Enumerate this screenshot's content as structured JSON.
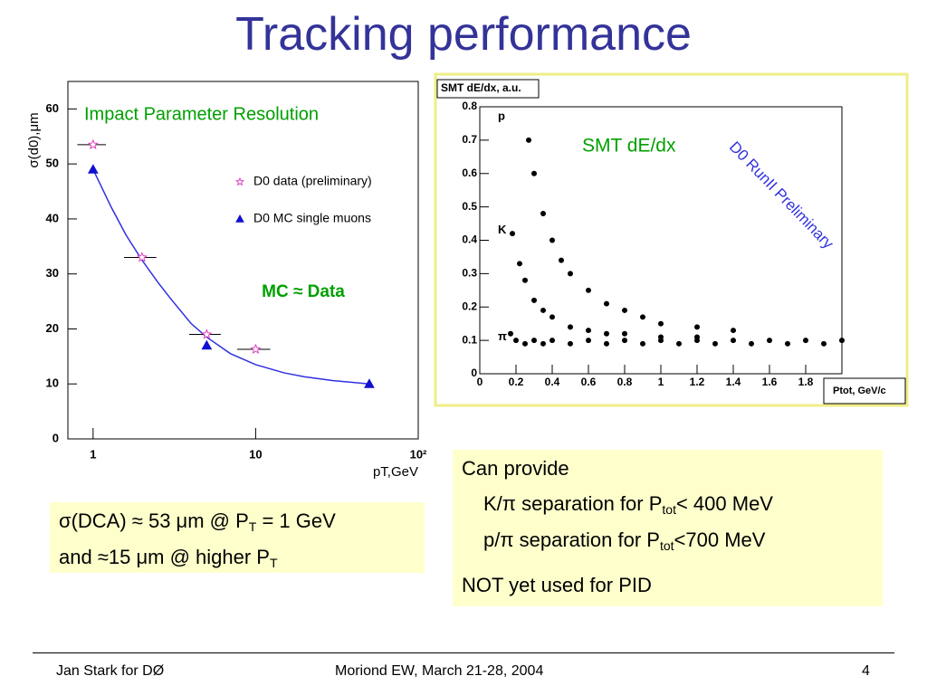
{
  "title": "Tracking performance",
  "chart_data": [
    {
      "type": "scatter",
      "title": "Impact Parameter Resolution",
      "annotation": "MC ≈ Data",
      "ylabel": "σ(d0),μm",
      "xlabel": "pT,GeV",
      "log_x": true,
      "xlim": [
        0.7,
        100
      ],
      "xticks": [
        1,
        10,
        {
          "value": 100,
          "label": "10²"
        }
      ],
      "ylim": [
        0,
        65
      ],
      "yticks": [
        0,
        10,
        20,
        30,
        40,
        50,
        60
      ],
      "series": [
        {
          "name": "D0 data (preliminary)",
          "color": "#e040c0",
          "marker": "star",
          "x": [
            1,
            2,
            5,
            10
          ],
          "values": [
            53.5,
            33,
            19,
            16.3
          ],
          "xerr": [
            0.2,
            0.45,
            1.1,
            2.3
          ]
        },
        {
          "name": "D0 MC single muons",
          "color": "#1010d0",
          "marker": "triangle",
          "x": [
            1,
            5,
            50
          ],
          "values": [
            49,
            17,
            10
          ]
        }
      ],
      "fit": {
        "color": "#3030e0",
        "x": [
          1,
          1.3,
          1.6,
          2,
          2.5,
          3,
          4,
          5,
          7,
          10,
          15,
          20,
          30,
          50
        ],
        "values": [
          49,
          42,
          37,
          32.5,
          28.5,
          25.5,
          21,
          18.5,
          15.5,
          13.5,
          12,
          11.3,
          10.6,
          10
        ]
      }
    },
    {
      "type": "scatter",
      "ylabel": "SMT dE/dx, a.u.",
      "xlabel": "Ptot, GeV/c",
      "annotation": "SMT dE/dx",
      "watermark": "D0 RunII Preliminary",
      "band_labels": [
        "p",
        "K",
        "π"
      ],
      "band_positions": [
        0.77,
        0.43,
        0.11
      ],
      "xlim": [
        0,
        2.0
      ],
      "xticks": [
        0,
        0.2,
        0.4,
        0.6,
        0.8,
        1,
        1.2,
        1.4,
        1.6,
        1.8
      ],
      "ylim": [
        0,
        0.8
      ],
      "yticks": [
        0,
        0.1,
        0.2,
        0.3,
        0.4,
        0.5,
        0.6,
        0.7,
        0.8
      ],
      "color": "#000000",
      "x": [
        0.17,
        0.2,
        0.25,
        0.3,
        0.35,
        0.4,
        0.5,
        0.6,
        0.7,
        0.8,
        0.9,
        1.0,
        1.1,
        1.2,
        1.3,
        1.4,
        1.5,
        1.6,
        1.7,
        1.8,
        1.9,
        2.0,
        0.18,
        0.22,
        0.25,
        0.3,
        0.35,
        0.4,
        0.5,
        0.6,
        0.7,
        0.8,
        1.0,
        1.2,
        0.27,
        0.3,
        0.35,
        0.4,
        0.45,
        0.5,
        0.6,
        0.7,
        0.8,
        0.9,
        1.0,
        1.2,
        1.4
      ],
      "values": [
        0.12,
        0.1,
        0.09,
        0.1,
        0.09,
        0.1,
        0.09,
        0.1,
        0.09,
        0.1,
        0.09,
        0.1,
        0.09,
        0.1,
        0.09,
        0.1,
        0.09,
        0.1,
        0.09,
        0.1,
        0.09,
        0.1,
        0.42,
        0.33,
        0.28,
        0.22,
        0.19,
        0.17,
        0.14,
        0.13,
        0.12,
        0.12,
        0.11,
        0.11,
        0.7,
        0.6,
        0.48,
        0.4,
        0.34,
        0.3,
        0.25,
        0.21,
        0.19,
        0.17,
        0.15,
        0.14,
        0.13
      ]
    }
  ],
  "dca_box": {
    "lines": [
      [
        "σ(DCA) ≈ 53 μm @ P",
        "T",
        " = 1 GeV"
      ],
      [
        "and ≈15 μm @ higher P",
        "T"
      ]
    ]
  },
  "pid_box": {
    "lines": [
      [
        "Can provide"
      ],
      [
        "K/π separation for P",
        "tot",
        "< 400 MeV"
      ],
      [
        "p/π separation for P",
        "tot",
        "<700 MeV"
      ],
      [
        "NOT yet used for PID"
      ]
    ]
  },
  "footer": {
    "left": "Jan Stark for DØ",
    "center": "Moriond EW, March 21-28, 2004",
    "right": "4"
  }
}
